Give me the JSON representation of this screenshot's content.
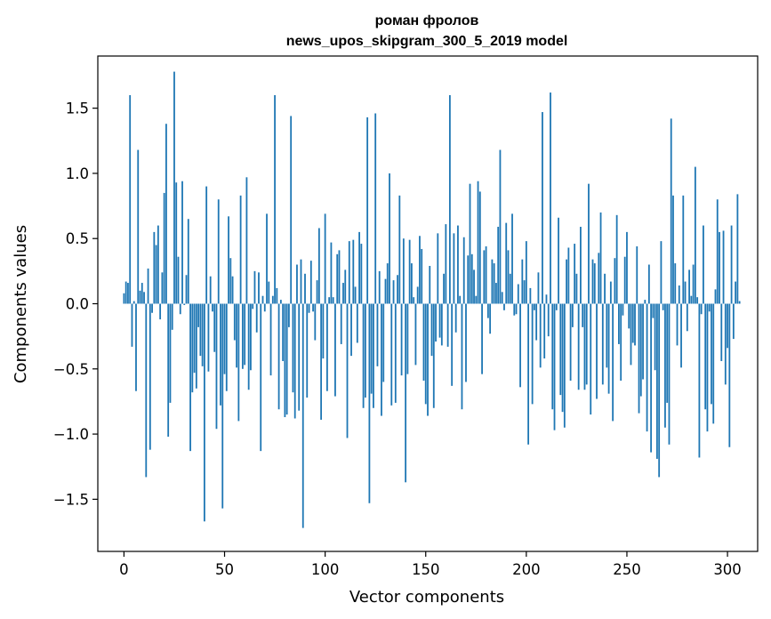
{
  "chart_data": {
    "type": "bar",
    "title_line1": "роман фролов",
    "title_line2": "news_upos_skipgram_300_5_2019 model",
    "xlabel": "Vector components",
    "ylabel": "Components values",
    "xlim": [
      -13,
      315
    ],
    "ylim": [
      -1.9,
      1.9
    ],
    "xticks": [
      0,
      50,
      100,
      150,
      200,
      250,
      300
    ],
    "xtick_labels": [
      "0",
      "50",
      "100",
      "150",
      "200",
      "250",
      "300"
    ],
    "yticks": [
      -1.5,
      -1.0,
      -0.5,
      0.0,
      0.5,
      1.0,
      1.5
    ],
    "ytick_labels": [
      "−1.5",
      "−1.0",
      "−0.5",
      "0.0",
      "0.5",
      "1.0",
      "1.5"
    ],
    "bar_color": "#1f77b4",
    "values": [
      0.08,
      0.17,
      0.16,
      1.6,
      -0.33,
      0.02,
      -0.67,
      1.18,
      0.1,
      0.16,
      0.09,
      -1.33,
      0.27,
      -1.12,
      -0.07,
      0.55,
      0.45,
      0.6,
      -0.12,
      0.24,
      0.85,
      1.38,
      -1.02,
      -0.76,
      -0.2,
      1.78,
      0.93,
      0.36,
      -0.08,
      0.94,
      -0.01,
      0.22,
      0.65,
      -1.13,
      -0.68,
      -0.53,
      -0.65,
      -0.18,
      -0.4,
      -0.48,
      -1.67,
      0.9,
      -0.52,
      0.21,
      -0.06,
      -0.37,
      -0.96,
      0.8,
      -0.78,
      -1.57,
      -0.54,
      -0.67,
      0.67,
      0.35,
      0.21,
      -0.28,
      -0.49,
      -0.9,
      0.83,
      -0.5,
      -0.47,
      0.97,
      -0.66,
      -0.51,
      -0.04,
      0.25,
      -0.22,
      0.24,
      -1.13,
      0.06,
      -0.06,
      0.69,
      0.17,
      -0.55,
      0.06,
      1.6,
      0.12,
      -0.81,
      0.03,
      -0.44,
      -0.87,
      -0.85,
      -0.18,
      1.44,
      -0.68,
      -0.88,
      0.3,
      -0.82,
      0.34,
      -1.72,
      0.23,
      -0.72,
      -0.07,
      0.33,
      -0.06,
      -0.28,
      0.18,
      0.58,
      -0.89,
      -0.42,
      0.69,
      -0.67,
      0.05,
      0.47,
      0.05,
      -0.71,
      0.38,
      0.41,
      -0.31,
      0.16,
      0.26,
      -1.03,
      0.48,
      -0.4,
      0.49,
      0.13,
      -0.3,
      0.55,
      0.46,
      -0.8,
      -0.72,
      1.43,
      -1.53,
      -0.69,
      -0.8,
      1.46,
      -0.48,
      0.25,
      -0.86,
      -0.6,
      0.19,
      0.31,
      1.0,
      -0.78,
      0.18,
      -0.76,
      0.22,
      0.83,
      -0.55,
      0.5,
      -1.37,
      -0.54,
      0.49,
      0.31,
      0.05,
      -0.47,
      0.13,
      0.52,
      0.42,
      -0.59,
      -0.77,
      -0.86,
      0.29,
      -0.4,
      -0.8,
      -0.29,
      0.54,
      -0.26,
      -0.32,
      0.23,
      0.61,
      -0.33,
      1.6,
      -0.63,
      0.54,
      -0.22,
      0.6,
      0.06,
      -0.81,
      0.51,
      -0.6,
      0.37,
      0.92,
      0.38,
      0.26,
      0.06,
      0.94,
      0.86,
      -0.54,
      0.41,
      0.44,
      -0.11,
      -0.23,
      0.34,
      0.31,
      0.16,
      0.59,
      1.18,
      0.09,
      -0.05,
      0.62,
      0.41,
      0.23,
      0.69,
      -0.09,
      -0.08,
      0.15,
      -0.64,
      0.34,
      0.18,
      0.48,
      -1.08,
      0.12,
      -0.77,
      -0.05,
      -0.28,
      0.24,
      -0.49,
      1.47,
      -0.42,
      0.07,
      -0.25,
      1.62,
      -0.81,
      -0.97,
      -0.05,
      0.66,
      -0.7,
      -0.83,
      -0.95,
      0.34,
      0.43,
      -0.59,
      -0.18,
      0.46,
      0.23,
      -0.66,
      0.59,
      -0.18,
      -0.66,
      -0.62,
      0.92,
      -0.85,
      0.34,
      0.31,
      -0.73,
      0.39,
      0.7,
      -0.62,
      0.23,
      -0.49,
      -0.69,
      0.17,
      -0.9,
      0.35,
      0.68,
      -0.31,
      -0.59,
      -0.09,
      0.36,
      0.55,
      -0.19,
      -0.47,
      -0.3,
      -0.32,
      0.44,
      -0.84,
      -0.71,
      -0.58,
      0.03,
      -0.98,
      0.3,
      -1.14,
      -0.11,
      -0.51,
      -1.19,
      -1.33,
      0.48,
      -0.05,
      -0.95,
      -0.76,
      -1.08,
      1.42,
      0.83,
      0.31,
      -0.32,
      0.14,
      -0.49,
      0.83,
      0.17,
      -0.21,
      0.26,
      0.06,
      0.3,
      1.05,
      0.05,
      -1.18,
      -0.08,
      0.6,
      -0.81,
      -0.98,
      -0.06,
      -0.77,
      -0.92,
      0.11,
      0.8,
      0.55,
      -0.44,
      0.56,
      -0.62,
      -0.34,
      -1.1,
      0.6,
      -0.27,
      0.17,
      0.84,
      0.02
    ]
  }
}
